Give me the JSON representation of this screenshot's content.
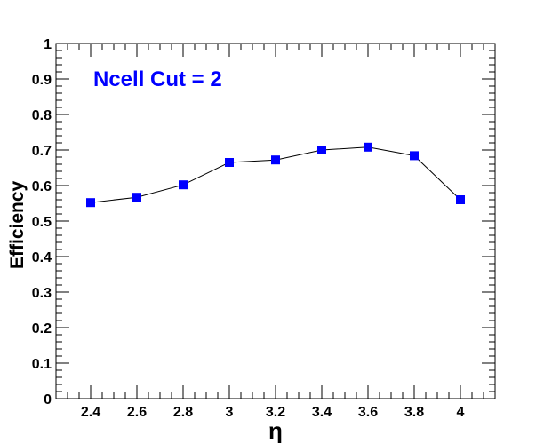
{
  "chart_data": {
    "type": "line",
    "xlabel": "η",
    "ylabel": "Efficiency",
    "xlim": [
      2.25,
      4.15
    ],
    "ylim": [
      0,
      1
    ],
    "x_ticks": [
      "2.4",
      "2.6",
      "2.8",
      "3",
      "3.2",
      "3.4",
      "3.6",
      "3.8",
      "4"
    ],
    "y_ticks": [
      "0",
      "0.1",
      "0.2",
      "0.3",
      "0.4",
      "0.5",
      "0.6",
      "0.7",
      "0.8",
      "0.9",
      "1"
    ],
    "annotation": "Ncell Cut = 2",
    "grid": false,
    "series": [
      {
        "x": [
          2.4,
          2.6,
          2.8,
          3.0,
          3.2,
          3.4,
          3.6,
          3.8,
          4.0
        ],
        "y": [
          0.552,
          0.567,
          0.602,
          0.665,
          0.672,
          0.7,
          0.708,
          0.684,
          0.56
        ]
      }
    ],
    "colors": {
      "marker": "#0000ff",
      "line": "#000000",
      "annotation": "#0000ff"
    }
  }
}
